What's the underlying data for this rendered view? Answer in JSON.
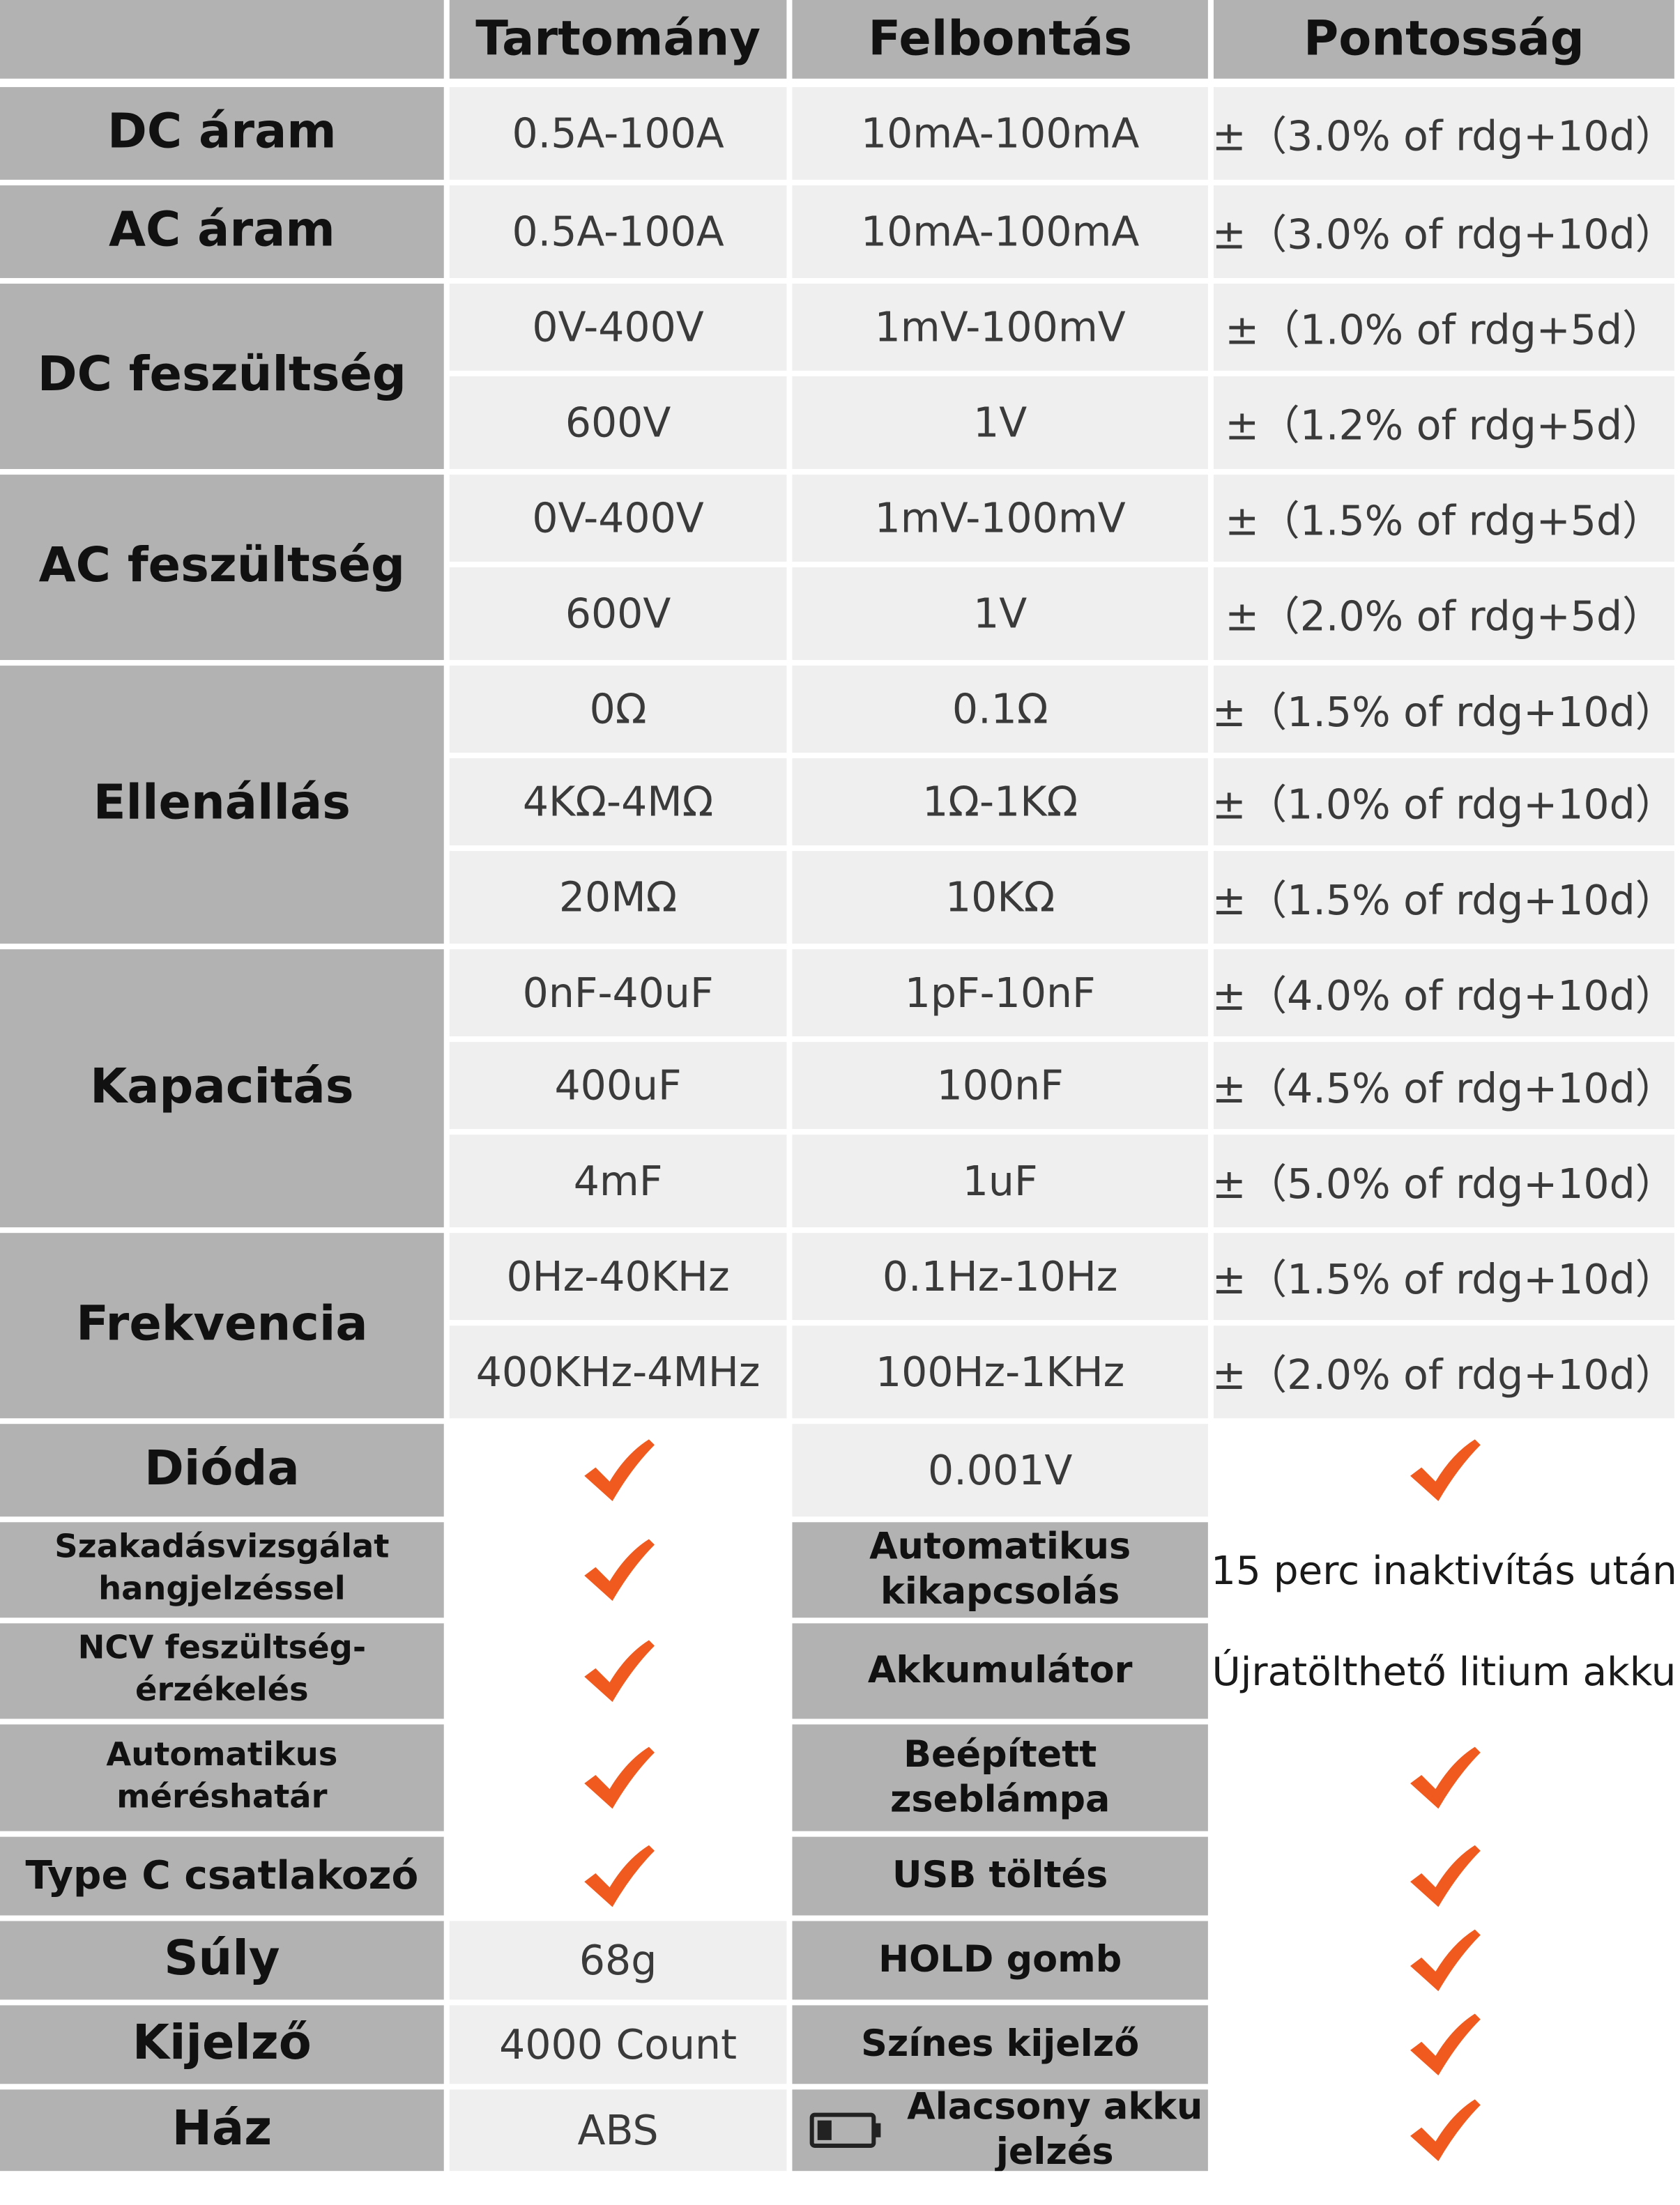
{
  "headers": [
    "",
    "Tartomány",
    "Felbontás",
    "Pontosság"
  ],
  "colors": {
    "label_bg": "#b2b2b2",
    "value_bg": "#efefef",
    "check": "#f05a1e"
  },
  "measurements": [
    {
      "label": "DC áram",
      "rows": [
        {
          "range": "0.5A-100A",
          "resolution": "10mA-100mA",
          "accuracy": "±（3.0% of rdg+10d）"
        }
      ]
    },
    {
      "label": "AC áram",
      "rows": [
        {
          "range": "0.5A-100A",
          "resolution": "10mA-100mA",
          "accuracy": "±（3.0% of rdg+10d）"
        }
      ]
    },
    {
      "label": "DC feszültség",
      "rows": [
        {
          "range": "0V-400V",
          "resolution": "1mV-100mV",
          "accuracy": "±（1.0% of rdg+5d）"
        },
        {
          "range": "600V",
          "resolution": "1V",
          "accuracy": "±（1.2% of rdg+5d）"
        }
      ]
    },
    {
      "label": "AC feszültség",
      "rows": [
        {
          "range": "0V-400V",
          "resolution": "1mV-100mV",
          "accuracy": "±（1.5% of rdg+5d）"
        },
        {
          "range": "600V",
          "resolution": "1V",
          "accuracy": "±（2.0% of rdg+5d）"
        }
      ]
    },
    {
      "label": "Ellenállás",
      "rows": [
        {
          "range": "0Ω",
          "resolution": "0.1Ω",
          "accuracy": "±（1.5% of rdg+10d）"
        },
        {
          "range": "4KΩ-4MΩ",
          "resolution": "1Ω-1KΩ",
          "accuracy": "±（1.0% of rdg+10d）"
        },
        {
          "range": "20MΩ",
          "resolution": "10KΩ",
          "accuracy": "±（1.5% of rdg+10d）"
        }
      ]
    },
    {
      "label": "Kapacitás",
      "rows": [
        {
          "range": "0nF-40uF",
          "resolution": "1pF-10nF",
          "accuracy": "±（4.0% of rdg+10d）"
        },
        {
          "range": "400uF",
          "resolution": "100nF",
          "accuracy": "±（4.5% of rdg+10d）"
        },
        {
          "range": "4mF",
          "resolution": "1uF",
          "accuracy": "±（5.0% of rdg+10d）"
        }
      ]
    },
    {
      "label": "Frekvencia",
      "rows": [
        {
          "range": "0Hz-40KHz",
          "resolution": "0.1Hz-10Hz",
          "accuracy": "±（1.5% of rdg+10d）"
        },
        {
          "range": "400KHz-4MHz",
          "resolution": "100Hz-1KHz",
          "accuracy": "±（2.0% of rdg+10d）"
        }
      ]
    }
  ],
  "diode": {
    "label": "Dióda",
    "range": true,
    "resolution": "0.001V",
    "accuracy": true
  },
  "features": [
    {
      "left_label": "Szakadásvizsgálat hangjelzéssel",
      "left_value": true,
      "right_label": "Automatikus kikapcsolás",
      "right_value": "15 perc inaktivítás után"
    },
    {
      "left_label": "NCV feszültség-érzékelés",
      "left_value": true,
      "right_label": "Akkumulátor",
      "right_value": "Újratölthető litium akku"
    },
    {
      "left_label": "Automatikus méréshatár",
      "left_value": true,
      "right_label": "Beépített zseblámpa",
      "right_value": true
    },
    {
      "left_label": "Type C csatlakozó",
      "left_value": true,
      "right_label": "USB töltés",
      "right_value": true
    },
    {
      "left_label": "Súly",
      "left_value": "68g",
      "right_label": "HOLD gomb",
      "right_value": true
    },
    {
      "left_label": "Kijelző",
      "left_value": "4000 Count",
      "right_label": "Színes kijelző",
      "right_value": true
    },
    {
      "left_label": "Ház",
      "left_value": "ABS",
      "right_label": "Alacsony akku jelzés",
      "right_icon": "battery-low-icon",
      "right_value": true
    }
  ]
}
